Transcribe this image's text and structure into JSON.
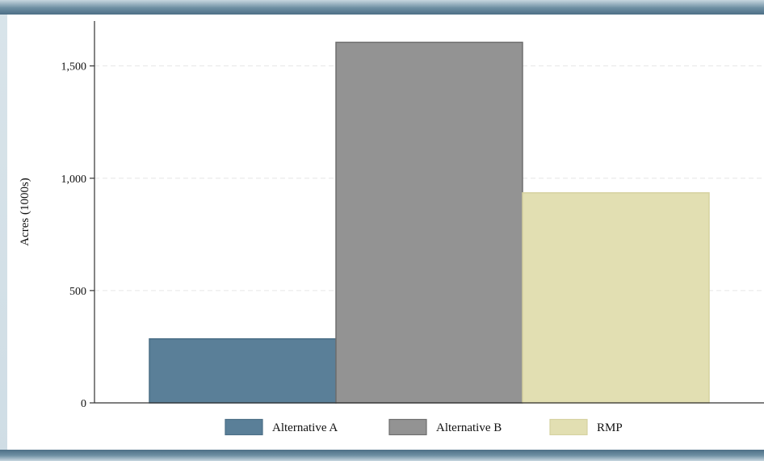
{
  "chart_data": {
    "type": "bar",
    "categories": [
      "Alternative A",
      "Alternative B",
      "RMP"
    ],
    "values": [
      285,
      1605,
      935
    ],
    "colors": [
      "#5a7f98",
      "#939393",
      "#e2dfb2"
    ],
    "edge_colors": [
      "#4b6e86",
      "#6e6e6e",
      "#d6d2a0"
    ],
    "title": "",
    "xlabel": "",
    "ylabel": "Acres (1000s)",
    "ylim": [
      0,
      1700
    ],
    "yticks": [
      0,
      500,
      1000,
      1500
    ],
    "ytick_labels": [
      "0",
      "500",
      "1,000",
      "1,500"
    ],
    "grid": true,
    "legend": {
      "position": "bottom",
      "entries": [
        "Alternative A",
        "Alternative B",
        "RMP"
      ]
    }
  }
}
